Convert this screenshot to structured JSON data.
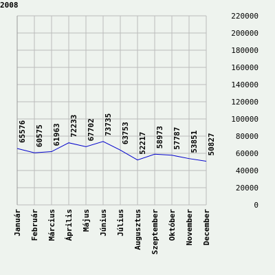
{
  "chart_data": {
    "type": "line",
    "title": "2008",
    "categories": [
      "Január",
      "Február",
      "Március",
      "Április",
      "Május",
      "Június",
      "Július",
      "Augusztus",
      "Szeptember",
      "Október",
      "November",
      "December"
    ],
    "series": [
      {
        "color": "#0000cc",
        "values": [
          65576,
          60575,
          61963,
          72233,
          67702,
          73735,
          63753,
          52217,
          58973,
          57787,
          53851,
          50827
        ]
      }
    ],
    "ylim": [
      0,
      220000
    ],
    "yticks": [
      0,
      20000,
      40000,
      60000,
      80000,
      100000,
      120000,
      140000,
      160000,
      180000,
      200000,
      220000
    ],
    "grid": true
  }
}
